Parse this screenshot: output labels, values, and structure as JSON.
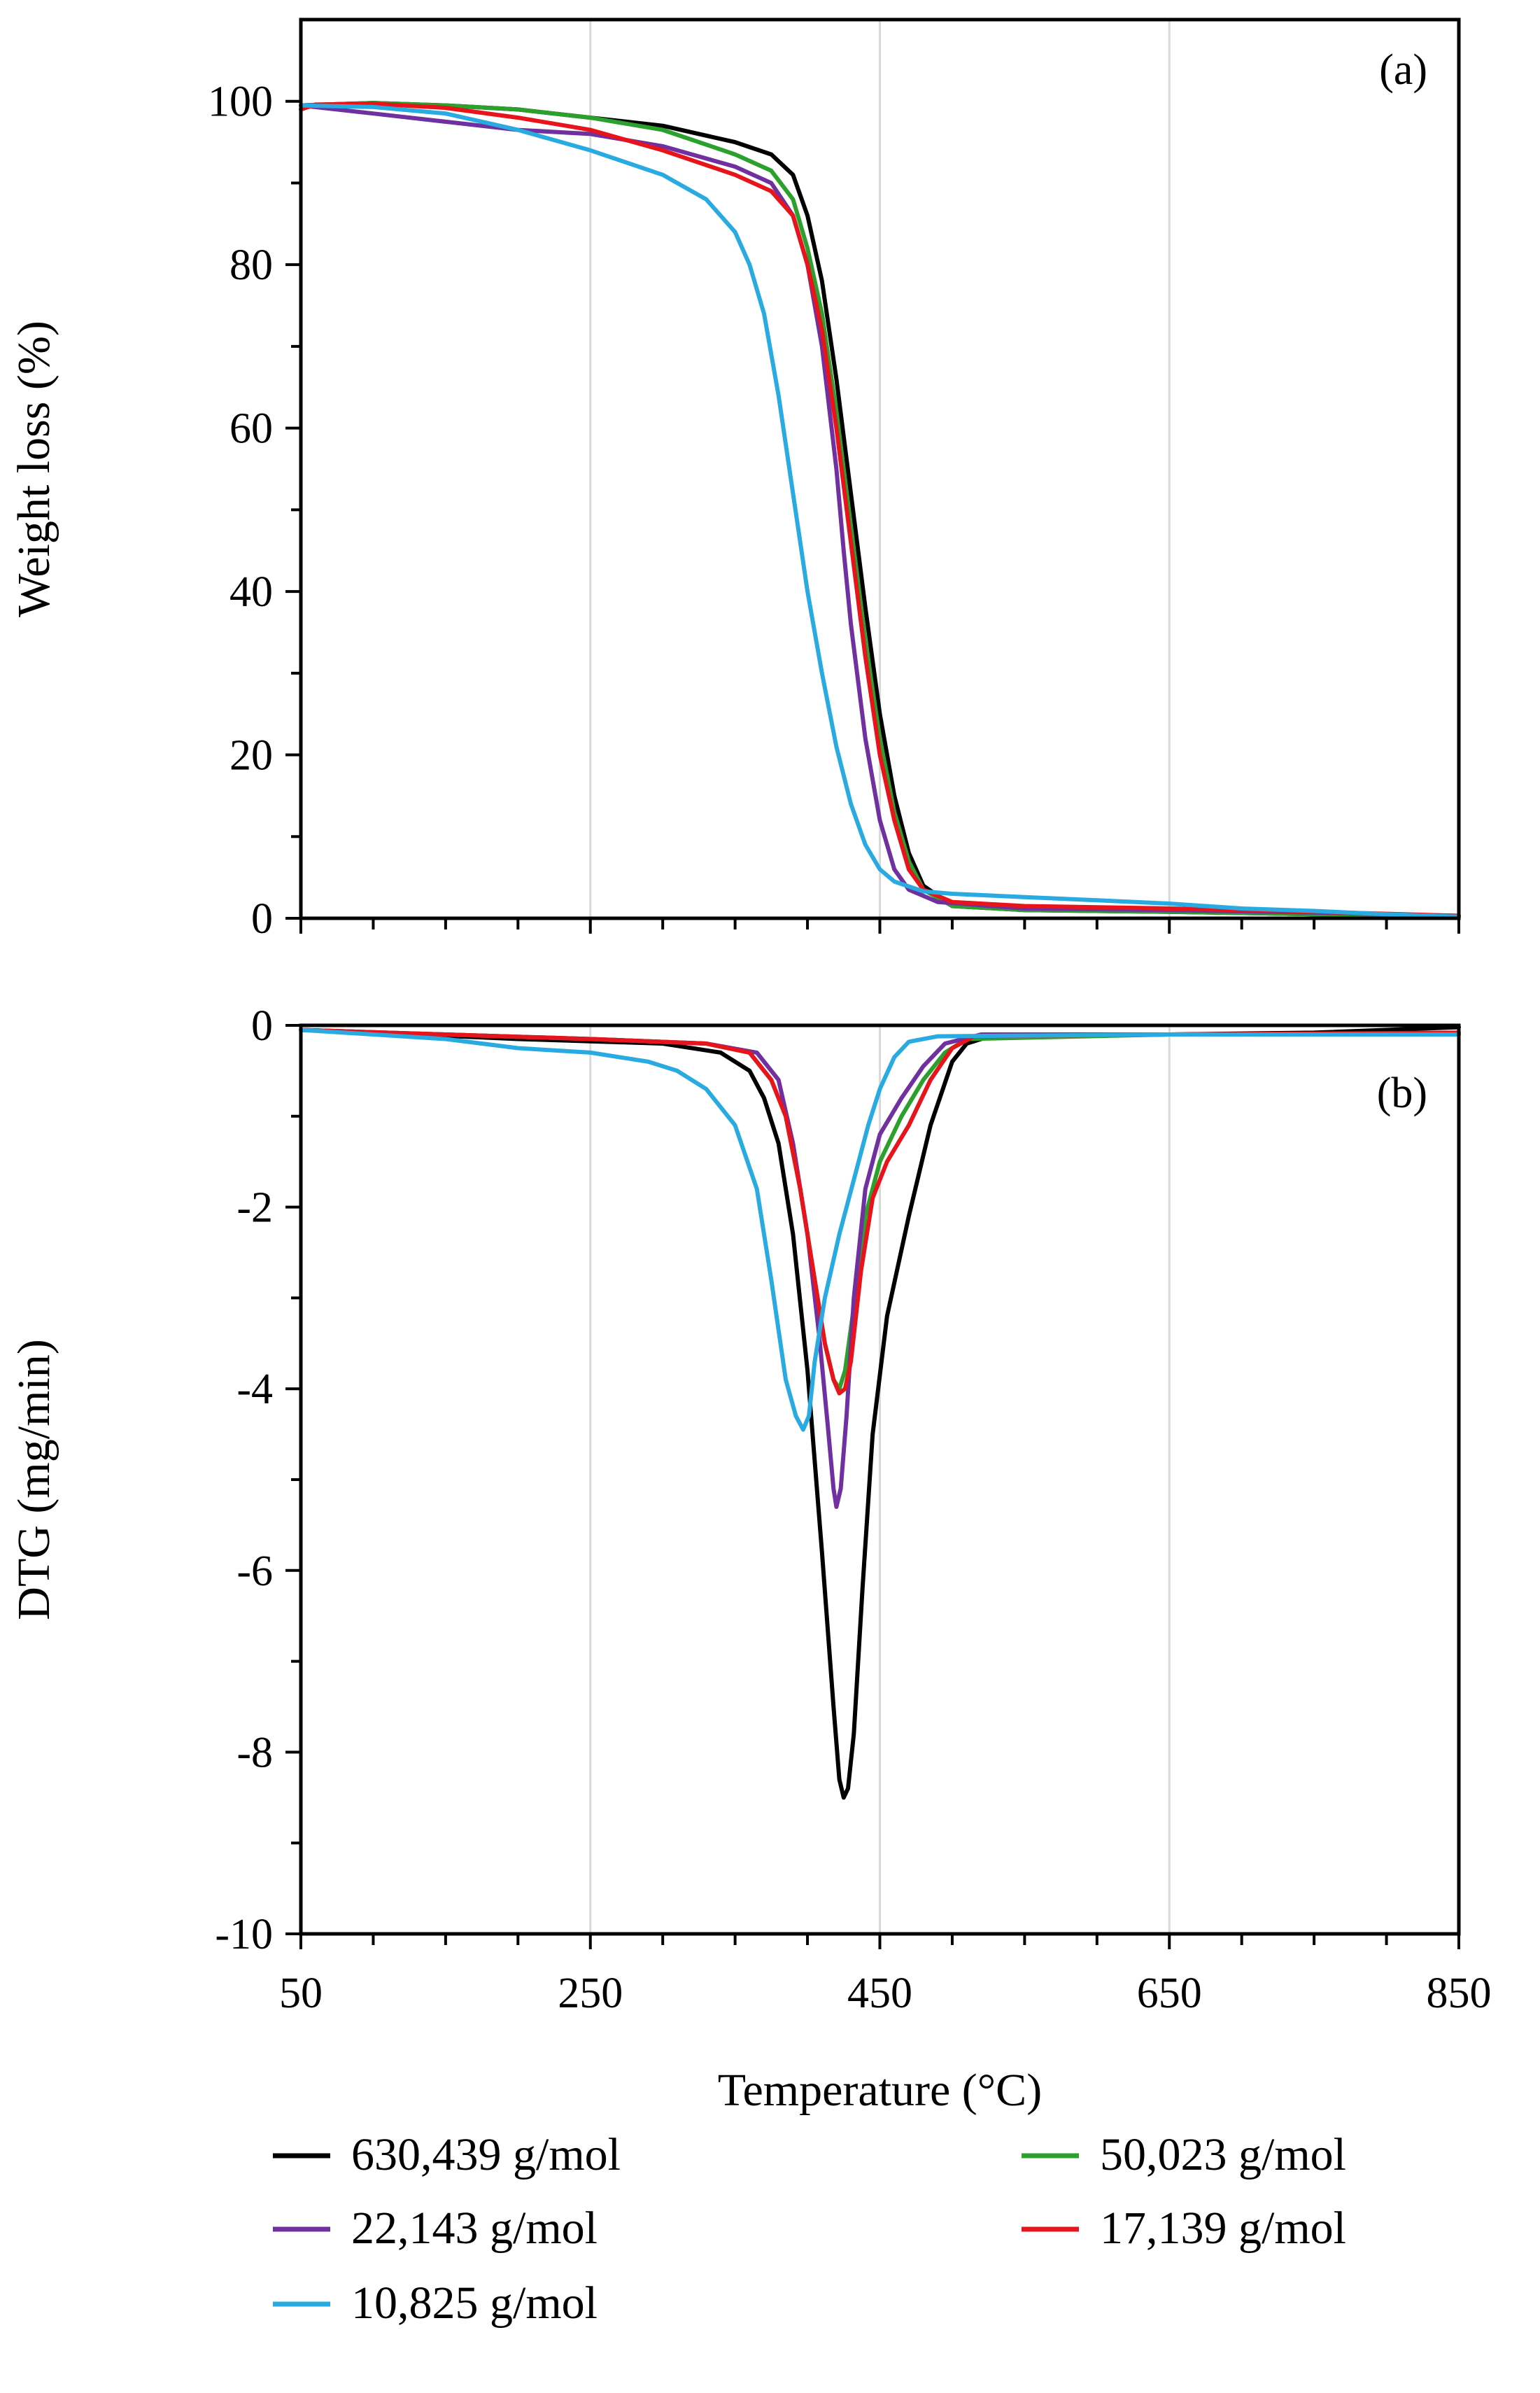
{
  "chart_data": [
    {
      "type": "line",
      "panel_label": "(a)",
      "xlabel": "Temperature (°C)",
      "ylabel": "Weight loss (%)",
      "xlim": [
        50,
        850
      ],
      "ylim": [
        0,
        110
      ],
      "x_ticks": [
        50,
        250,
        450,
        650,
        850
      ],
      "y_ticks": [
        0,
        20,
        40,
        60,
        80,
        100
      ],
      "y_tick_labels": [
        "0",
        "20",
        "40",
        "60",
        "80",
        "100"
      ],
      "grid": "vertical",
      "series": [
        {
          "name": "630,439 g/mol",
          "color": "#000000",
          "points": [
            [
              50,
              99.5
            ],
            [
              100,
              99.8
            ],
            [
              150,
              99.5
            ],
            [
              200,
              99
            ],
            [
              250,
              98
            ],
            [
              300,
              97
            ],
            [
              350,
              95
            ],
            [
              375,
              93.5
            ],
            [
              390,
              91
            ],
            [
              400,
              86
            ],
            [
              410,
              78
            ],
            [
              420,
              66
            ],
            [
              430,
              52
            ],
            [
              440,
              38
            ],
            [
              450,
              25
            ],
            [
              460,
              15
            ],
            [
              470,
              8
            ],
            [
              480,
              4
            ],
            [
              500,
              1.5
            ],
            [
              550,
              1
            ],
            [
              650,
              0.8
            ],
            [
              750,
              0.5
            ],
            [
              850,
              0.2
            ]
          ]
        },
        {
          "name": "50,023 g/mol",
          "color": "#2ca02c",
          "points": [
            [
              50,
              99.5
            ],
            [
              100,
              99.8
            ],
            [
              150,
              99.5
            ],
            [
              200,
              99
            ],
            [
              250,
              98
            ],
            [
              300,
              96.5
            ],
            [
              350,
              93.5
            ],
            [
              375,
              91.5
            ],
            [
              390,
              88
            ],
            [
              400,
              82
            ],
            [
              410,
              74
            ],
            [
              420,
              62
            ],
            [
              430,
              48
            ],
            [
              440,
              34
            ],
            [
              450,
              22
            ],
            [
              460,
              13
            ],
            [
              470,
              7
            ],
            [
              480,
              3.5
            ],
            [
              500,
              1.5
            ],
            [
              550,
              1
            ],
            [
              650,
              0.8
            ],
            [
              750,
              0.5
            ],
            [
              850,
              0.3
            ]
          ]
        },
        {
          "name": "22,143 g/mol",
          "color": "#7030a0",
          "points": [
            [
              50,
              99.5
            ],
            [
              100,
              98.5
            ],
            [
              150,
              97.5
            ],
            [
              200,
              96.5
            ],
            [
              250,
              96
            ],
            [
              300,
              94.5
            ],
            [
              350,
              92
            ],
            [
              375,
              90
            ],
            [
              390,
              86
            ],
            [
              400,
              80
            ],
            [
              410,
              70
            ],
            [
              420,
              55
            ],
            [
              425,
              45
            ],
            [
              430,
              36
            ],
            [
              440,
              22
            ],
            [
              450,
              12
            ],
            [
              460,
              6
            ],
            [
              470,
              3.5
            ],
            [
              490,
              2
            ],
            [
              550,
              1.2
            ],
            [
              650,
              1
            ],
            [
              750,
              0.7
            ],
            [
              850,
              0.3
            ]
          ]
        },
        {
          "name": "17,139 g/mol",
          "color": "#e8141b",
          "points": [
            [
              50,
              99
            ],
            [
              60,
              99.6
            ],
            [
              100,
              99.7
            ],
            [
              150,
              99.2
            ],
            [
              200,
              98
            ],
            [
              250,
              96.5
            ],
            [
              300,
              94
            ],
            [
              350,
              91
            ],
            [
              375,
              89
            ],
            [
              390,
              86
            ],
            [
              400,
              80
            ],
            [
              410,
              72
            ],
            [
              420,
              60
            ],
            [
              430,
              46
            ],
            [
              440,
              32
            ],
            [
              450,
              20
            ],
            [
              460,
              12
            ],
            [
              470,
              6
            ],
            [
              480,
              3.5
            ],
            [
              500,
              2
            ],
            [
              550,
              1.5
            ],
            [
              650,
              1.2
            ],
            [
              750,
              0.8
            ],
            [
              850,
              0.3
            ]
          ]
        },
        {
          "name": "10,825 g/mol",
          "color": "#29abe2",
          "points": [
            [
              50,
              99.5
            ],
            [
              100,
              99.3
            ],
            [
              150,
              98.5
            ],
            [
              200,
              96.5
            ],
            [
              250,
              94
            ],
            [
              300,
              91
            ],
            [
              330,
              88
            ],
            [
              350,
              84
            ],
            [
              360,
              80
            ],
            [
              370,
              74
            ],
            [
              380,
              64
            ],
            [
              390,
              52
            ],
            [
              400,
              40
            ],
            [
              410,
              30
            ],
            [
              420,
              21
            ],
            [
              430,
              14
            ],
            [
              440,
              9
            ],
            [
              450,
              6
            ],
            [
              460,
              4.5
            ],
            [
              480,
              3.3
            ],
            [
              500,
              3
            ],
            [
              550,
              2.6
            ],
            [
              600,
              2.2
            ],
            [
              650,
              1.8
            ],
            [
              700,
              1.2
            ],
            [
              750,
              0.9
            ],
            [
              800,
              0.5
            ],
            [
              850,
              0.2
            ]
          ]
        }
      ]
    },
    {
      "type": "line",
      "panel_label": "(b)",
      "xlabel": "Temperature (°C)",
      "ylabel": "DTG (mg/min)",
      "xlim": [
        50,
        850
      ],
      "ylim": [
        -10,
        0
      ],
      "x_ticks": [
        50,
        250,
        450,
        650,
        850
      ],
      "x_tick_labels": [
        "50",
        "250",
        "450",
        "650",
        "850"
      ],
      "y_ticks": [
        -10,
        -8,
        -6,
        -4,
        -2,
        0
      ],
      "y_tick_labels": [
        "-10",
        "-8",
        "-6",
        "-4",
        "-2",
        "0"
      ],
      "grid": "vertical",
      "series": [
        {
          "name": "630,439 g/mol",
          "color": "#000000",
          "points": [
            [
              50,
              -0.05
            ],
            [
              100,
              -0.08
            ],
            [
              200,
              -0.15
            ],
            [
              300,
              -0.2
            ],
            [
              340,
              -0.3
            ],
            [
              360,
              -0.5
            ],
            [
              370,
              -0.8
            ],
            [
              380,
              -1.3
            ],
            [
              390,
              -2.3
            ],
            [
              400,
              -3.8
            ],
            [
              410,
              -5.8
            ],
            [
              418,
              -7.5
            ],
            [
              422,
              -8.3
            ],
            [
              425,
              -8.5
            ],
            [
              428,
              -8.4
            ],
            [
              432,
              -7.8
            ],
            [
              438,
              -6.2
            ],
            [
              445,
              -4.5
            ],
            [
              455,
              -3.2
            ],
            [
              470,
              -2.1
            ],
            [
              485,
              -1.1
            ],
            [
              500,
              -0.4
            ],
            [
              510,
              -0.2
            ],
            [
              530,
              -0.1
            ],
            [
              650,
              -0.1
            ],
            [
              750,
              -0.08
            ],
            [
              850,
              -0.02
            ]
          ]
        },
        {
          "name": "50,023 g/mol",
          "color": "#2ca02c",
          "points": [
            [
              50,
              -0.05
            ],
            [
              150,
              -0.1
            ],
            [
              250,
              -0.15
            ],
            [
              330,
              -0.2
            ],
            [
              360,
              -0.3
            ],
            [
              375,
              -0.6
            ],
            [
              385,
              -1
            ],
            [
              395,
              -1.8
            ],
            [
              405,
              -2.8
            ],
            [
              412,
              -3.5
            ],
            [
              418,
              -3.9
            ],
            [
              422,
              -4.0
            ],
            [
              426,
              -3.8
            ],
            [
              432,
              -3.1
            ],
            [
              440,
              -2.1
            ],
            [
              450,
              -1.5
            ],
            [
              465,
              -1.0
            ],
            [
              480,
              -0.6
            ],
            [
              495,
              -0.3
            ],
            [
              510,
              -0.15
            ],
            [
              650,
              -0.1
            ],
            [
              850,
              -0.1
            ]
          ]
        },
        {
          "name": "22,143 g/mol",
          "color": "#7030a0",
          "points": [
            [
              50,
              -0.05
            ],
            [
              150,
              -0.1
            ],
            [
              250,
              -0.15
            ],
            [
              330,
              -0.2
            ],
            [
              365,
              -0.3
            ],
            [
              380,
              -0.6
            ],
            [
              390,
              -1.3
            ],
            [
              400,
              -2.3
            ],
            [
              408,
              -3.4
            ],
            [
              414,
              -4.4
            ],
            [
              418,
              -5.1
            ],
            [
              420,
              -5.3
            ],
            [
              423,
              -5.1
            ],
            [
              427,
              -4.3
            ],
            [
              432,
              -3.0
            ],
            [
              440,
              -1.8
            ],
            [
              450,
              -1.2
            ],
            [
              465,
              -0.8
            ],
            [
              480,
              -0.45
            ],
            [
              495,
              -0.2
            ],
            [
              520,
              -0.1
            ],
            [
              650,
              -0.1
            ],
            [
              850,
              -0.1
            ]
          ]
        },
        {
          "name": "17,139 g/mol",
          "color": "#e8141b",
          "points": [
            [
              50,
              -0.05
            ],
            [
              150,
              -0.1
            ],
            [
              250,
              -0.15
            ],
            [
              330,
              -0.2
            ],
            [
              360,
              -0.3
            ],
            [
              375,
              -0.6
            ],
            [
              385,
              -1
            ],
            [
              395,
              -1.8
            ],
            [
              405,
              -2.8
            ],
            [
              412,
              -3.5
            ],
            [
              418,
              -3.9
            ],
            [
              422,
              -4.05
            ],
            [
              426,
              -4.0
            ],
            [
              430,
              -3.7
            ],
            [
              437,
              -2.7
            ],
            [
              445,
              -1.9
            ],
            [
              455,
              -1.5
            ],
            [
              470,
              -1.1
            ],
            [
              485,
              -0.6
            ],
            [
              500,
              -0.25
            ],
            [
              515,
              -0.12
            ],
            [
              650,
              -0.1
            ],
            [
              850,
              -0.08
            ]
          ]
        },
        {
          "name": "10,825 g/mol",
          "color": "#29abe2",
          "points": [
            [
              50,
              -0.05
            ],
            [
              100,
              -0.1
            ],
            [
              150,
              -0.15
            ],
            [
              200,
              -0.25
            ],
            [
              250,
              -0.3
            ],
            [
              290,
              -0.4
            ],
            [
              310,
              -0.5
            ],
            [
              330,
              -0.7
            ],
            [
              350,
              -1.1
            ],
            [
              365,
              -1.8
            ],
            [
              375,
              -2.8
            ],
            [
              385,
              -3.9
            ],
            [
              392,
              -4.3
            ],
            [
              397,
              -4.45
            ],
            [
              401,
              -4.3
            ],
            [
              405,
              -3.7
            ],
            [
              412,
              -3.0
            ],
            [
              422,
              -2.3
            ],
            [
              432,
              -1.7
            ],
            [
              442,
              -1.1
            ],
            [
              450,
              -0.7
            ],
            [
              460,
              -0.35
            ],
            [
              470,
              -0.18
            ],
            [
              490,
              -0.12
            ],
            [
              650,
              -0.1
            ],
            [
              850,
              -0.1
            ]
          ]
        }
      ]
    }
  ],
  "legend": {
    "items": [
      {
        "label": "630,439 g/mol",
        "color": "#000000"
      },
      {
        "label": "50,023 g/mol",
        "color": "#2ca02c"
      },
      {
        "label": "22,143 g/mol",
        "color": "#7030a0"
      },
      {
        "label": "17,139 g/mol",
        "color": "#e8141b"
      },
      {
        "label": "10,825 g/mol",
        "color": "#29abe2"
      }
    ]
  }
}
